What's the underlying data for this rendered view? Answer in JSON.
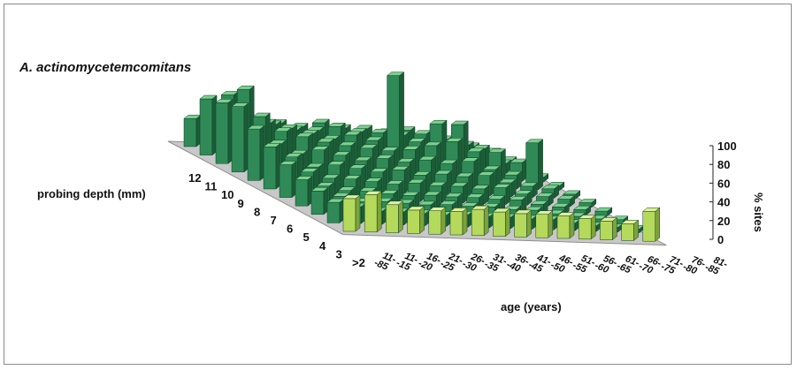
{
  "chart_data": {
    "type": "bar3d",
    "title": "A. actinomycetemcomitans",
    "xlabel": "age (years)",
    "ylabel": "probing depth (mm)",
    "zlabel": "% sites",
    "zlim": [
      0,
      100
    ],
    "z_ticks": [
      "0",
      "20",
      "40",
      "60",
      "80",
      "100"
    ],
    "age_groups": [
      "11-15",
      "16-20",
      "21-25",
      "26-30",
      "31-35",
      "36-40",
      "41-45",
      "46-50",
      "51-55",
      "56-60",
      "61-65",
      "66-70",
      "71-75",
      "76-80",
      "81-85"
    ],
    "age_tick_top": [
      "11-",
      "11-",
      "16-",
      "21-",
      "26-",
      "31-",
      "36-",
      "41-",
      "46-",
      "51-",
      "56-",
      "61-",
      "66-",
      "71-",
      "76-",
      "81-"
    ],
    "age_tick_bottom": [
      "-85",
      "-15",
      "-20",
      "-25",
      "-30",
      "-35",
      "-40",
      "-45",
      "-50",
      "-55",
      "-60",
      "-65",
      "-70",
      "-75",
      "-80",
      "-85"
    ],
    "depth_ticks": [
      "12",
      "11",
      "10",
      "9",
      "8",
      "7",
      "6",
      "5",
      "4",
      "3",
      ">2"
    ],
    "rows_back_to_front": [
      {
        "depth": "12",
        "values": [
          30,
          40,
          25,
          30,
          28,
          25,
          30,
          25,
          25,
          22,
          25,
          20,
          15,
          10,
          5
        ]
      },
      {
        "depth": "11",
        "values": [
          60,
          65,
          40,
          35,
          30,
          30,
          35,
          30,
          30,
          28,
          30,
          25,
          20,
          10,
          5
        ]
      },
      {
        "depth": "10",
        "values": [
          65,
          80,
          45,
          40,
          35,
          30,
          35,
          30,
          100,
          30,
          50,
          50,
          25,
          10,
          5
        ]
      },
      {
        "depth": "9",
        "values": [
          70,
          60,
          45,
          40,
          35,
          32,
          30,
          28,
          30,
          35,
          40,
          30,
          30,
          20,
          5
        ]
      },
      {
        "depth": "8",
        "values": [
          55,
          40,
          30,
          35,
          30,
          25,
          28,
          25,
          28,
          25,
          28,
          20,
          15,
          50,
          5
        ]
      },
      {
        "depth": "7",
        "values": [
          45,
          35,
          25,
          28,
          25,
          22,
          25,
          20,
          22,
          20,
          22,
          15,
          12,
          10,
          5
        ]
      },
      {
        "depth": "6",
        "values": [
          35,
          28,
          22,
          22,
          20,
          18,
          20,
          18,
          18,
          16,
          18,
          12,
          10,
          8,
          5
        ]
      },
      {
        "depth": "5",
        "values": [
          28,
          22,
          18,
          18,
          16,
          15,
          16,
          15,
          15,
          14,
          14,
          10,
          8,
          6,
          5
        ]
      },
      {
        "depth": "4",
        "values": [
          25,
          20,
          15,
          16,
          15,
          14,
          15,
          14,
          14,
          12,
          12,
          9,
          7,
          5,
          5
        ]
      },
      {
        "depth": "3",
        "values": [
          22,
          18,
          14,
          14,
          13,
          12,
          13,
          12,
          12,
          11,
          11,
          8,
          6,
          5,
          4
        ]
      },
      {
        "depth": ">2",
        "values": [
          35,
          40,
          30,
          25,
          25,
          25,
          28,
          26,
          25,
          25,
          24,
          22,
          20,
          18,
          32
        ]
      }
    ],
    "colors": {
      "bar_front": "#2f8a57",
      "bar_side": "#1b5c37",
      "bar_top": "#7bd08f",
      "front_row_front": "#b5d95b",
      "front_row_side": "#7fa23a",
      "front_row_top": "#dff09b",
      "floor": "#c8c8c8",
      "floor_edge": "#8e8e8e"
    }
  }
}
